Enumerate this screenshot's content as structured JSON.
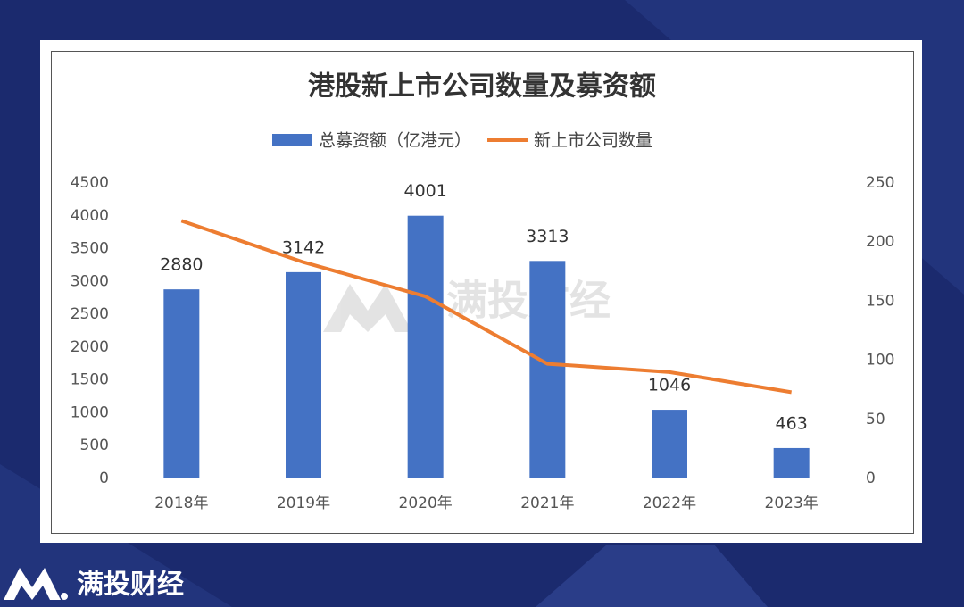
{
  "chart_data": {
    "type": "bar-line",
    "title": "港股新上市公司数量及募资额",
    "categories": [
      "2018年",
      "2019年",
      "2020年",
      "2021年",
      "2022年",
      "2023年"
    ],
    "series": [
      {
        "name": "总募资额（亿港元）",
        "color": "#4472c4",
        "kind": "bar",
        "values": [
          2880,
          3142,
          4001,
          3313,
          1046,
          463
        ],
        "data_labels": true
      },
      {
        "name": "新上市公司数量",
        "color": "#ed7d31",
        "kind": "line",
        "axis": "y2",
        "values": [
          218,
          183,
          154,
          97,
          90,
          73
        ]
      }
    ],
    "ylim": [
      0,
      4500
    ],
    "yticks": [
      0,
      500,
      1000,
      1500,
      2000,
      2500,
      3000,
      3500,
      4000,
      4500
    ],
    "y2lim": [
      0,
      250
    ],
    "y2ticks": [
      0,
      50,
      100,
      150,
      200,
      250
    ],
    "grid": false,
    "legend": "top"
  },
  "watermark": "满投财经",
  "brand": "满投财经"
}
